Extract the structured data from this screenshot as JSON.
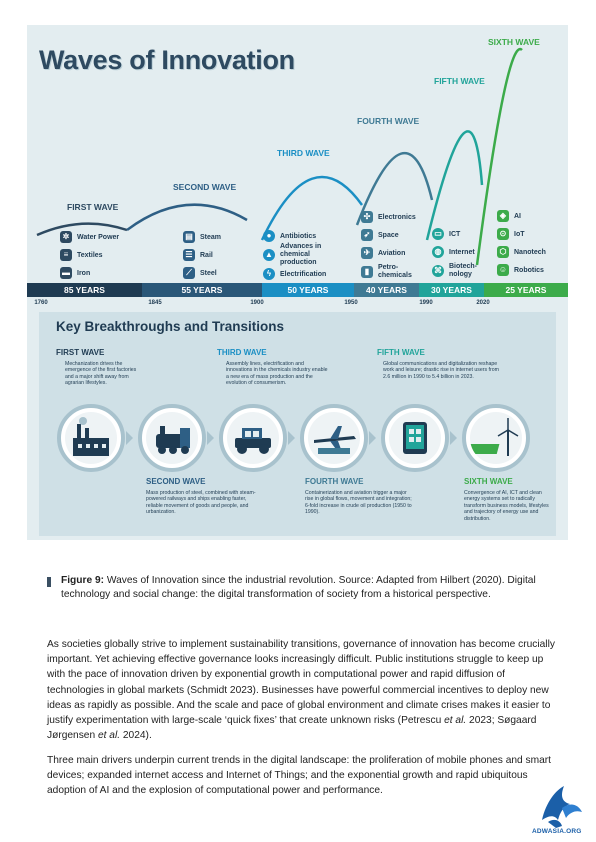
{
  "infographic": {
    "title": "Waves of Innovation",
    "waves": [
      {
        "label": "FIRST WAVE",
        "color": "#2e4a61",
        "years": "85 YEARS",
        "items": [
          "Water Power",
          "Textiles",
          "Iron"
        ],
        "icons": [
          "water-wheel-icon",
          "textile-spool-icon",
          "iron-anvil-icon"
        ]
      },
      {
        "label": "SECOND WAVE",
        "color": "#2e5f85",
        "years": "55 YEARS",
        "items": [
          "Steam",
          "Rail",
          "Steel"
        ],
        "icons": [
          "steam-engine-icon",
          "rail-icon",
          "steel-beam-icon"
        ]
      },
      {
        "label": "THIRD WAVE",
        "color": "#1b8fc4",
        "years": "50 YEARS",
        "items": [
          "Antibiotics",
          "Advances in chemical production",
          "Electrification"
        ],
        "icons": [
          "pill-icon",
          "flask-icon",
          "lightning-icon"
        ]
      },
      {
        "label": "FOURTH WAVE",
        "color": "#3f7a94",
        "years": "40 YEARS",
        "items": [
          "Electronics",
          "Space",
          "Aviation",
          "Petro-chemicals"
        ],
        "icons": [
          "circuit-icon",
          "rocket-icon",
          "airplane-icon",
          "oil-icon"
        ]
      },
      {
        "label": "FIFTH WAVE",
        "color": "#21a49a",
        "years": "30 YEARS",
        "items": [
          "ICT",
          "Internet",
          "Biotech-nology"
        ],
        "icons": [
          "computer-icon",
          "globe-icon",
          "dna-icon"
        ]
      },
      {
        "label": "SIXTH WAVE",
        "color": "#3cab4a",
        "years": "25 YEARS",
        "items": [
          "AI",
          "IoT",
          "Nanotech",
          "Robotics"
        ],
        "icons": [
          "ai-chip-icon",
          "iot-icon",
          "nanotech-icon",
          "robot-icon"
        ]
      }
    ],
    "timeline_years": [
      "1760",
      "1845",
      "1900",
      "1950",
      "1990",
      "2020"
    ],
    "breakthroughs": {
      "title": "Key Breakthroughs and Transitions",
      "entries": [
        {
          "head": "FIRST WAVE",
          "color": "#1f3b52",
          "text": "Mechanization drives the emergence of the first factories and a major shift away from agrarian lifestyles."
        },
        {
          "head": "SECOND WAVE",
          "color": "#2e5f85",
          "text": "Mass production of steel, combined with steam-powered railways and ships enabling faster, reliable movement of goods and people, and urbanization."
        },
        {
          "head": "THIRD WAVE",
          "color": "#1b8fc4",
          "text": "Assembly lines, electrification and innovations in the chemicals industry enable a new era of mass production and the evolution of consumerism."
        },
        {
          "head": "FOURTH WAVE",
          "color": "#3f7a94",
          "text": "Containerization and aviation trigger a major rise in global flows, movement and integration; 6-fold increase in crude oil production (1950 to 1990)."
        },
        {
          "head": "FIFTH WAVE",
          "color": "#21a49a",
          "text": "Global communications and digitalization reshape work and leisure; drastic rise in internet users from 2.6 million in 1990 to 5.4 billion in 2023."
        },
        {
          "head": "SIXTH WAVE",
          "color": "#3cab4a",
          "text": "Convergence of AI, ICT and clean energy systems set to radically transform business models, lifestyles and trajectory of energy use and distribution."
        }
      ]
    }
  },
  "caption": {
    "label": "Figure 9:",
    "text": "Waves of Innovation since the industrial revolution. Source: Adapted from Hilbert (2020). Digital technology and social change: the digital transformation of society from a historical perspective."
  },
  "paragraphs": {
    "p1_a": "As societies globally strive to implement sustainability transitions, governance of innovation has become crucially important. Yet achieving effective governance looks increasingly difficult. Public institutions struggle to keep up with the pace of innovation driven by exponential growth in computational power and rapid diffusion of technologies in global markets (Schmidt 2023). Businesses have powerful commercial incentives to deploy new ideas as rapidly as possible. And the scale and pace of global environment and climate crises makes it easier to justify experimentation with large-scale ‘quick fixes’ that create unknown risks (Petrescu ",
    "p1_etal1": "et al.",
    "p1_b": " 2023; Søgaard Jørgensen ",
    "p1_etal2": "et al.",
    "p1_c": " 2024).",
    "p2": "Three main drivers underpin current trends in the digital landscape: the proliferation of mobile phones and smart devices; expanded internet access and Internet of Things; and the exponential growth and rapid ubiquitous adoption of AI and the explosion of computational power and performance."
  },
  "logo_text": "ADWASIA.ORG"
}
